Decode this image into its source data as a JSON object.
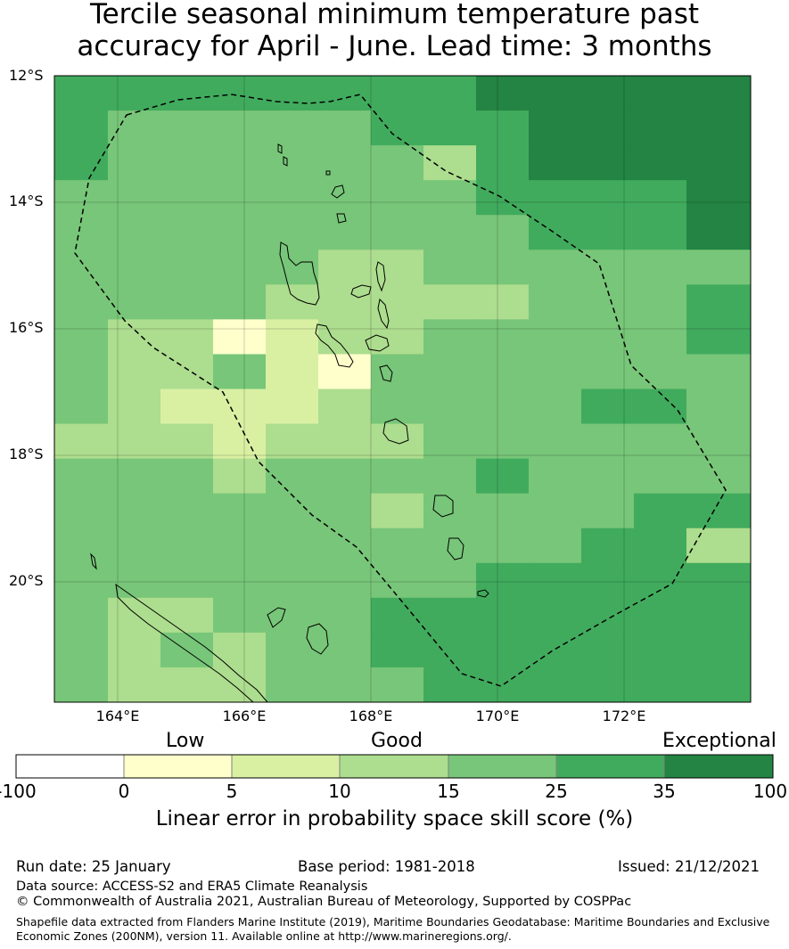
{
  "title": {
    "line1": "Tercile seasonal minimum temperature past",
    "line2": "accuracy for April - June. Lead time: 3 months"
  },
  "map": {
    "lat_labels": [
      "12°S",
      "14°S",
      "16°S",
      "18°S",
      "20°S"
    ],
    "lon_labels": [
      "164°E",
      "166°E",
      "168°E",
      "170°E",
      "172°E"
    ],
    "lon_range": [
      163.0,
      174.0
    ],
    "lat_range": [
      -21.9,
      -12.0
    ],
    "grid_lines": true,
    "eez_boundary_style": "dashed black"
  },
  "colors": {
    "c0": "#ffffff",
    "c1": "#ffffcc",
    "c2": "#d9f0a3",
    "c3": "#addd8e",
    "c4": "#78c679",
    "c5": "#41ab5d",
    "c6": "#238443"
  },
  "skill_grid": {
    "rows": [
      "5555555566666",
      "5444445556666",
      "5444444356666",
      "4444444455556",
      "4444444445556",
      "4444433444444",
      "4444333334445",
      "4331233444445",
      "4334214444444",
      "4322234444554",
      "3332333444444",
      "4443444454444",
      "4444443444455",
      "4444444444553",
      "4444444455555",
      "4334445555555",
      "4343445555555",
      "4333444555555"
    ]
  },
  "colorbar": {
    "category_labels": [
      "Low",
      "Good",
      "Exceptional"
    ],
    "ticks": [
      "-100",
      "0",
      "5",
      "10",
      "15",
      "25",
      "35",
      "100"
    ],
    "title": "Linear error in probability space skill score (%)"
  },
  "footer": {
    "run_date": "Run date: 25 January",
    "base_period": "Base period: 1981-2018",
    "issued": "Issued: 21/12/2021",
    "data_source": "Data source: ACCESS-S2 and ERA5 Climate Reanalysis",
    "copyright": "© Commonwealth of Australia 2021, Australian Bureau of Meteorology, Supported by COSPPac",
    "shapefile_line1": "Shapefile data extracted from Flanders Marine Institute (2019), Maritime Boundaries Geodatabase: Maritime Boundaries and Exclusive",
    "shapefile_line2": "Economic Zones (200NM), version 11. Available online at http://www.marineregions.org/."
  }
}
